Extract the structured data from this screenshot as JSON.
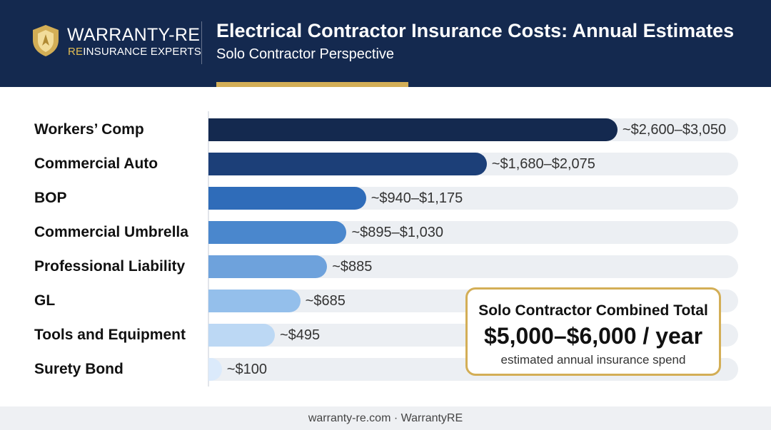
{
  "brand": {
    "name": "WARRANTY-RE",
    "tag_highlight": "RE",
    "tag_rest": "INSURANCE EXPERTS"
  },
  "header": {
    "title": "Electrical Contractor Insurance Costs: Annual Estimates",
    "subtitle": "Solo Contractor Perspective"
  },
  "colors": {
    "header_bg": "#14294f",
    "accent_gold": "#d3ae56",
    "track": "#eceff3"
  },
  "chart_data": {
    "type": "bar",
    "orientation": "horizontal",
    "unit": "USD per year",
    "categories": [
      "Workers’ Comp",
      "Commercial Auto",
      "BOP",
      "Commercial Umbrella",
      "Professional Liability",
      "GL",
      "Tools and Equipment",
      "Surety Bond"
    ],
    "value_labels": [
      "~$2,600–$3,050",
      "~$1,680–$2,075",
      "~$940–$1,175",
      "~$895–$1,030",
      "~$885",
      "~$685",
      "~$495",
      "~$100"
    ],
    "values": [
      3050,
      2075,
      1175,
      1030,
      885,
      685,
      495,
      100
    ],
    "xlim": [
      0,
      3950
    ],
    "bar_colors": [
      "#14294f",
      "#1c3f78",
      "#2f6cb9",
      "#4a87cd",
      "#6ea2dc",
      "#94bfeb",
      "#bcd8f4",
      "#dbeafb"
    ],
    "grid": false,
    "legend": "none"
  },
  "callout": {
    "title": "Solo Contractor Combined Total",
    "total": "$5,000–$6,000 / year",
    "note": "estimated annual insurance spend"
  },
  "footer": {
    "text": "warranty-re.com · WarrantyRE"
  }
}
